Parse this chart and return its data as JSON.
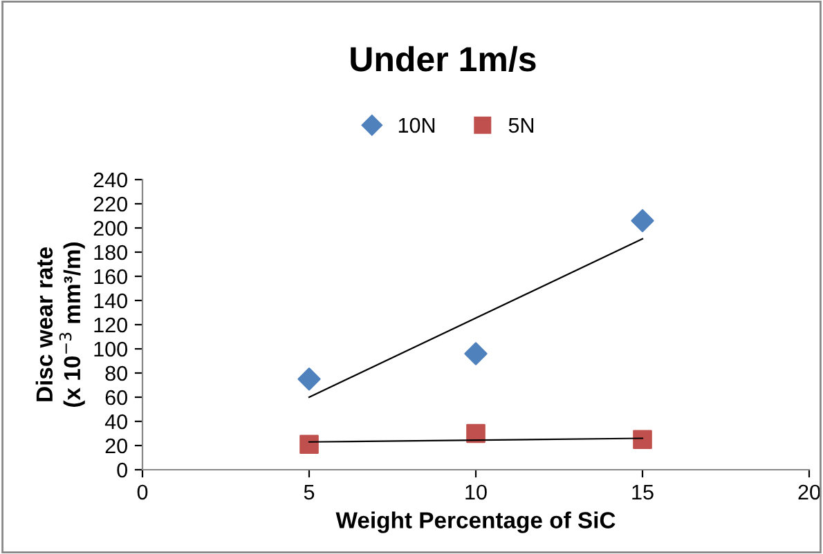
{
  "chart_data": {
    "type": "scatter",
    "title": "Under 1m/s",
    "xlabel": "Weight Percentage of SiC",
    "ylabel": "Disc wear rate\n(x 10$^{−3}$ mm³/m)",
    "series": [
      {
        "name": "10N",
        "color": "#4f81bd",
        "marker": "diamond",
        "x": [
          5,
          10,
          15
        ],
        "values": [
          75,
          96,
          206
        ]
      },
      {
        "name": "5N",
        "color": "#c0504d",
        "marker": "square",
        "x": [
          5,
          10,
          15
        ],
        "values": [
          21,
          30,
          25
        ]
      },
      {
        "type": "line",
        "color": "#000000",
        "x": [
          5,
          15
        ],
        "values": [
          60,
          191
        ]
      },
      {
        "type": "line",
        "color": "#000000",
        "x": [
          5,
          15
        ],
        "values": [
          23,
          26
        ]
      }
    ],
    "xlim": [
      0,
      20
    ],
    "xticks": [
      0,
      5,
      10,
      15,
      20
    ],
    "ylim": [
      0,
      240
    ],
    "yticks": [
      0,
      20,
      40,
      60,
      80,
      100,
      120,
      140,
      160,
      180,
      200,
      220,
      240
    ],
    "grid": false,
    "legend": "top"
  }
}
